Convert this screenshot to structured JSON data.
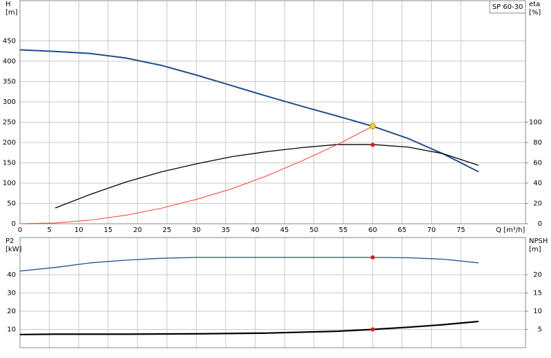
{
  "chart_data": [
    {
      "type": "line",
      "legend_label": "SP 60-30",
      "ylabel": "H",
      "yunit": "[m]",
      "y2label": "eta",
      "y2unit": "[%]",
      "xlabel": "Q [m³/h]",
      "xlim": [
        0,
        86
      ],
      "xticks": [
        0,
        5,
        10,
        15,
        20,
        25,
        30,
        35,
        40,
        45,
        50,
        55,
        60,
        65,
        70,
        75
      ],
      "ylim": [
        0,
        549
      ],
      "yticks": [
        0,
        50,
        100,
        150,
        200,
        250,
        300,
        350,
        400,
        450
      ],
      "y2lim": [
        0,
        219.6
      ],
      "y2ticks": [
        0,
        20,
        40,
        60,
        80,
        100
      ],
      "grid": true,
      "show_xtick_labels": true,
      "series": [
        {
          "color": "#1f4e8c",
          "width": 2,
          "x": [
            0,
            6,
            12,
            18,
            24,
            30,
            36,
            42,
            48,
            54,
            60,
            66,
            72,
            78
          ],
          "values": [
            428,
            424,
            419,
            408,
            390,
            366,
            340,
            314,
            289,
            265,
            240,
            210,
            172,
            128
          ]
        },
        {
          "color": "#000000",
          "width": 1.3,
          "axis": "y2",
          "x": [
            6,
            12,
            18,
            24,
            30,
            36,
            42,
            48,
            54,
            60,
            66,
            72,
            78
          ],
          "values": [
            15.5,
            29,
            41,
            51,
            59,
            66,
            71,
            75,
            78,
            78,
            75.5,
            69,
            57.5
          ]
        },
        {
          "color": "#ff3333",
          "width": 1,
          "x": [
            0,
            6,
            12,
            18,
            24,
            30,
            36,
            42,
            48,
            54,
            60
          ],
          "values": [
            0,
            2,
            9,
            21,
            38,
            60,
            86,
            118,
            155,
            195,
            240
          ]
        }
      ],
      "points": [
        {
          "x": 60,
          "y": 77.7,
          "axis": "y2",
          "color": "#ee1111"
        },
        {
          "x": 60,
          "y": 240,
          "color": "#ffd21f"
        }
      ]
    },
    {
      "type": "line",
      "ylabel": "P2",
      "yunit": "[kW]",
      "y2label": "NPSH",
      "y2unit": "[m]",
      "xlim": [
        0,
        86
      ],
      "xticks": [
        0,
        5,
        10,
        15,
        20,
        25,
        30,
        35,
        40,
        45,
        50,
        55,
        60,
        65,
        70,
        75
      ],
      "ylim": [
        0,
        60.4
      ],
      "yticks": [
        10,
        20,
        30,
        40
      ],
      "y2lim": [
        0,
        30.2
      ],
      "y2ticks": [
        5,
        10,
        15,
        20
      ],
      "grid": true,
      "show_xtick_labels": false,
      "series": [
        {
          "color": "#1f4e8c",
          "width": 1.3,
          "x": [
            0,
            6,
            12,
            18,
            24,
            30,
            42,
            54,
            60,
            66,
            72,
            78
          ],
          "values": [
            42,
            44,
            46.5,
            48,
            49,
            49.5,
            49.5,
            49.5,
            49.5,
            49.3,
            48.5,
            46.5
          ]
        },
        {
          "color": "#000000",
          "width": 2.2,
          "axis": "y2",
          "x": [
            0,
            6,
            18,
            30,
            42,
            54,
            60,
            66,
            72,
            78
          ],
          "values": [
            3.6,
            3.7,
            3.7,
            3.8,
            4,
            4.5,
            5,
            5.6,
            6.3,
            7.2
          ]
        }
      ],
      "points": [
        {
          "x": 60,
          "y": 49.5,
          "color": "#ee1111"
        },
        {
          "x": 60,
          "y": 5,
          "axis": "y2",
          "color": "#ee1111"
        }
      ]
    }
  ]
}
